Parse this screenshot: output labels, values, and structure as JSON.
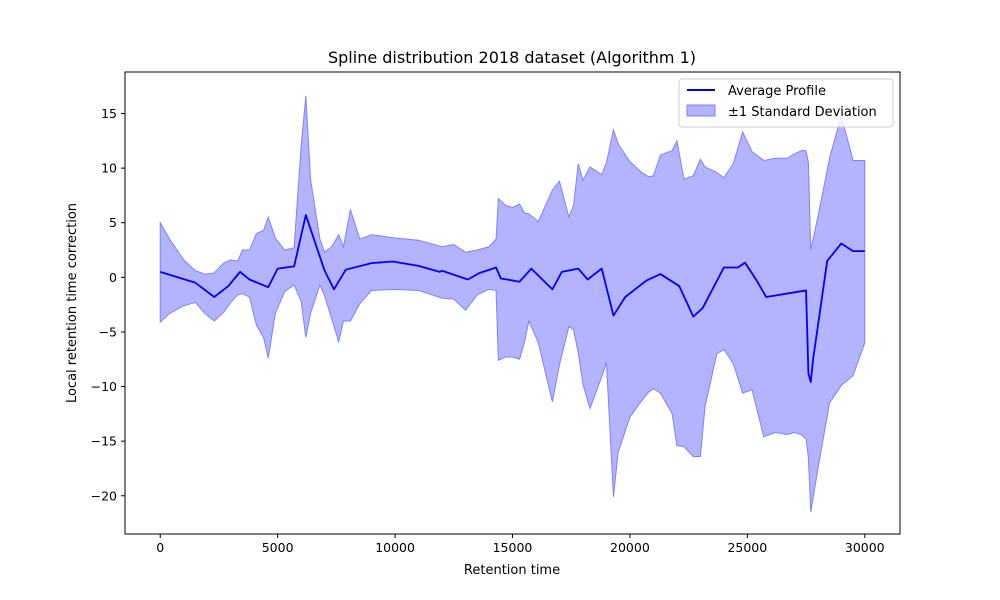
{
  "chart_data": {
    "type": "line",
    "title": "Spline distribution 2018 dataset (Algorithm 1)",
    "xlabel": "Retention time",
    "ylabel": "Local retention time correction",
    "xlim": [
      -1500,
      31500
    ],
    "ylim": [
      -23.5,
      18.8
    ],
    "xticks": [
      0,
      5000,
      10000,
      15000,
      20000,
      25000,
      30000
    ],
    "xtick_labels": [
      "0",
      "5000",
      "10000",
      "15000",
      "20000",
      "25000",
      "30000"
    ],
    "yticks": [
      -20,
      -15,
      -10,
      -5,
      0,
      5,
      10,
      15
    ],
    "ytick_labels": [
      "−20",
      "−15",
      "−10",
      "−5",
      "0",
      "5",
      "10",
      "15"
    ],
    "grid": false,
    "legend_position": "top-right",
    "colors": {
      "line": "#0000ff",
      "band_fill": "#b3b3ff",
      "band_edge": "#8080ff"
    },
    "series": [
      {
        "name": "Average Profile",
        "x": [
          0,
          1500,
          2300,
          2900,
          3400,
          3800,
          4600,
          5000,
          5700,
          6200,
          7000,
          7400,
          7900,
          9000,
          9900,
          11000,
          11900,
          12000,
          13100,
          13600,
          14300,
          14500,
          15300,
          15800,
          16700,
          17100,
          17800,
          18200,
          18800,
          19300,
          19800,
          20700,
          21300,
          22100,
          22700,
          23100,
          24000,
          24500,
          24600,
          24900,
          25400,
          25800,
          27500,
          27600,
          27700,
          27800,
          28400,
          29000,
          29500,
          30000
        ],
        "y": [
          0.5,
          -0.5,
          -1.8,
          -0.8,
          0.5,
          -0.2,
          -0.9,
          0.8,
          1.0,
          5.7,
          0.6,
          -1.1,
          0.7,
          1.3,
          1.45,
          1.05,
          0.5,
          0.6,
          -0.2,
          0.4,
          0.9,
          -0.1,
          -0.4,
          0.8,
          -1.1,
          0.5,
          0.8,
          -0.2,
          0.8,
          -3.5,
          -1.8,
          -0.3,
          0.3,
          -0.8,
          -3.6,
          -2.8,
          0.9,
          0.9,
          0.9,
          1.35,
          -0.3,
          -1.8,
          -1.2,
          -8.8,
          -9.6,
          -7.5,
          1.5,
          3.1,
          2.4,
          2.4
        ]
      },
      {
        "name": "±1 Standard Deviation",
        "x": [
          0,
          400,
          1000,
          1500,
          1900,
          2300,
          2700,
          3000,
          3300,
          3500,
          3800,
          4100,
          4400,
          4600,
          4900,
          5300,
          5700,
          6000,
          6200,
          6400,
          6800,
          7000,
          7300,
          7600,
          7800,
          8100,
          8500,
          9000,
          10000,
          11000,
          12000,
          12500,
          13000,
          13500,
          14000,
          14300,
          14400,
          14700,
          15000,
          15300,
          15500,
          15700,
          16100,
          16700,
          17000,
          17400,
          17600,
          17800,
          18000,
          18300,
          18800,
          19000,
          19300,
          19500,
          20000,
          20500,
          20800,
          21000,
          21300,
          21800,
          22000,
          22300,
          22700,
          23000,
          23200,
          23700,
          24000,
          24400,
          24800,
          25200,
          25700,
          26200,
          26700,
          27000,
          27300,
          27500,
          27600,
          27700,
          28000,
          28500,
          29000,
          29500,
          30000
        ],
        "upper": [
          5.0,
          3.5,
          1.6,
          0.6,
          0.3,
          0.4,
          1.3,
          1.6,
          1.5,
          2.5,
          2.5,
          4.0,
          4.3,
          5.5,
          3.6,
          2.5,
          2.7,
          12.0,
          16.6,
          9.0,
          3.5,
          2.3,
          2.8,
          3.9,
          2.8,
          6.2,
          3.5,
          3.9,
          3.6,
          3.4,
          2.8,
          3.0,
          2.3,
          2.5,
          2.8,
          3.5,
          7.2,
          6.6,
          6.4,
          6.7,
          5.9,
          5.8,
          5.1,
          8.0,
          8.8,
          5.5,
          6.6,
          10.4,
          8.9,
          10.1,
          9.4,
          10.5,
          13.5,
          12.2,
          10.6,
          9.6,
          9.2,
          9.3,
          11.2,
          11.6,
          12.5,
          9.0,
          9.3,
          10.8,
          10.1,
          9.6,
          9.1,
          10.4,
          13.3,
          11.5,
          10.7,
          10.9,
          10.9,
          11.3,
          11.6,
          11.6,
          10.5,
          2.5,
          5.5,
          10.9,
          14.8,
          10.7,
          10.7
        ],
        "lower": [
          -4.1,
          -3.3,
          -2.6,
          -2.3,
          -3.3,
          -4.0,
          -3.2,
          -2.3,
          -1.6,
          -1.5,
          -1.8,
          -4.4,
          -5.5,
          -7.4,
          -3.3,
          -1.3,
          -0.7,
          -2.2,
          -5.5,
          -3.3,
          -0.7,
          -1.7,
          -3.8,
          -5.9,
          -4.0,
          -4.0,
          -2.4,
          -1.2,
          -1.1,
          -1.2,
          -1.9,
          -2.0,
          -3.0,
          -1.6,
          -1.1,
          -1.2,
          -7.6,
          -7.3,
          -7.3,
          -7.5,
          -6.0,
          -4.0,
          -6.0,
          -11.4,
          -8.0,
          -4.5,
          -4.8,
          -6.9,
          -9.8,
          -12.0,
          -9.1,
          -7.8,
          -20.1,
          -16.0,
          -12.8,
          -11.3,
          -10.5,
          -10.2,
          -10.6,
          -12.5,
          -15.4,
          -15.5,
          -16.4,
          -16.4,
          -11.8,
          -7.0,
          -6.6,
          -7.9,
          -10.6,
          -10.3,
          -14.6,
          -14.2,
          -14.4,
          -14.2,
          -14.4,
          -14.8,
          -16.5,
          -21.5,
          -17.6,
          -11.5,
          -9.9,
          -9.0,
          -6.0
        ]
      }
    ]
  }
}
